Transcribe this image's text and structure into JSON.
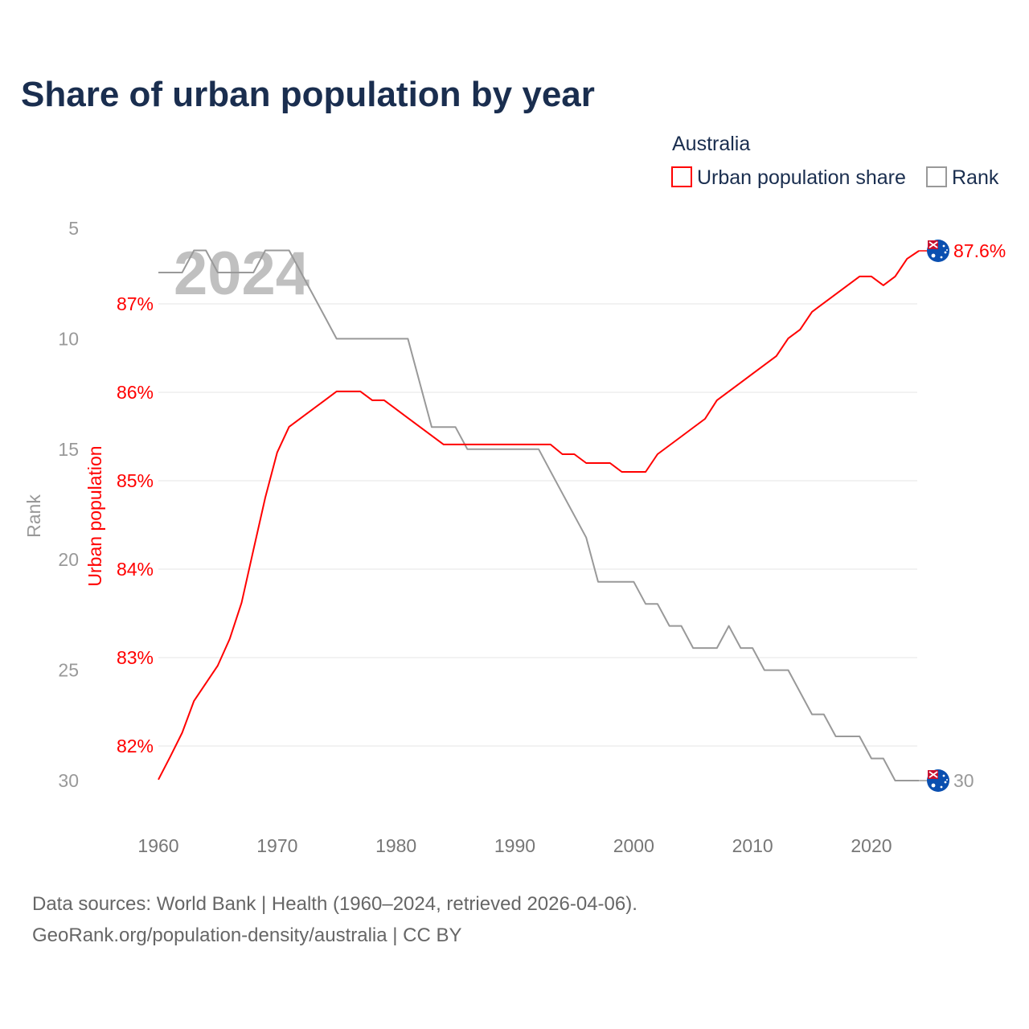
{
  "title": "Share of urban population by year",
  "legend": {
    "title": "Australia",
    "items": [
      {
        "label": "Urban population share",
        "color": "#ff0000"
      },
      {
        "label": "Rank",
        "color": "#999999"
      }
    ]
  },
  "watermark_year": "2024",
  "footer": {
    "line1": "Data sources: World Bank | Health (1960–2024, retrieved 2026-04-06).",
    "line2": "GeoRank.org/population-density/australia | CC BY"
  },
  "chart_data": {
    "type": "line",
    "title": "Share of urban population by year",
    "xlabel": "",
    "ylabel_left_outer": "Rank",
    "ylabel_left_inner": "Urban population",
    "x_ticks": [
      "1960",
      "1970",
      "1980",
      "1990",
      "2000",
      "2010",
      "2020"
    ],
    "rank_ticks": [
      "5",
      "10",
      "15",
      "20",
      "25",
      "30"
    ],
    "pct_ticks": [
      "82%",
      "83%",
      "84%",
      "85%",
      "86%",
      "87%"
    ],
    "rank_range": [
      5,
      30
    ],
    "pct_range": [
      81.6,
      87.85
    ],
    "grid": true,
    "legend_position": "top-right",
    "x": [
      1960,
      1961,
      1962,
      1963,
      1964,
      1965,
      1966,
      1967,
      1968,
      1969,
      1970,
      1971,
      1972,
      1973,
      1974,
      1975,
      1976,
      1977,
      1978,
      1979,
      1980,
      1981,
      1982,
      1983,
      1984,
      1985,
      1986,
      1987,
      1988,
      1989,
      1990,
      1991,
      1992,
      1993,
      1994,
      1995,
      1996,
      1997,
      1998,
      1999,
      2000,
      2001,
      2002,
      2003,
      2004,
      2005,
      2006,
      2007,
      2008,
      2009,
      2010,
      2011,
      2012,
      2013,
      2014,
      2015,
      2016,
      2017,
      2018,
      2019,
      2020,
      2021,
      2022,
      2023,
      2024
    ],
    "series": [
      {
        "name": "Urban population share",
        "color": "#ff0000",
        "axis": "pct",
        "values": [
          81.62,
          81.88,
          82.15,
          82.51,
          82.71,
          82.91,
          83.21,
          83.62,
          84.22,
          84.81,
          85.32,
          85.61,
          85.71,
          85.81,
          85.91,
          86.01,
          86.01,
          86.01,
          85.91,
          85.91,
          85.81,
          85.71,
          85.61,
          85.51,
          85.41,
          85.41,
          85.41,
          85.41,
          85.41,
          85.41,
          85.41,
          85.41,
          85.41,
          85.41,
          85.3,
          85.3,
          85.2,
          85.2,
          85.2,
          85.1,
          85.1,
          85.1,
          85.3,
          85.4,
          85.5,
          85.6,
          85.7,
          85.91,
          86.01,
          86.11,
          86.21,
          86.31,
          86.41,
          86.61,
          86.71,
          86.91,
          87.01,
          87.11,
          87.21,
          87.31,
          87.31,
          87.21,
          87.31,
          87.51,
          87.6
        ],
        "end_label": "87.6%"
      },
      {
        "name": "Rank",
        "color": "#999999",
        "axis": "rank",
        "values": [
          7,
          7,
          7,
          6,
          6,
          7,
          7,
          7,
          7,
          6,
          6,
          6,
          7,
          8,
          9,
          10,
          10,
          10,
          10,
          10,
          10,
          10,
          12,
          14,
          14,
          14,
          15,
          15,
          15,
          15,
          15,
          15,
          15,
          16,
          17,
          18,
          19,
          21,
          21,
          21,
          21,
          22,
          22,
          23,
          23,
          24,
          24,
          24,
          23,
          24,
          24,
          25,
          25,
          25,
          26,
          27,
          27,
          28,
          28,
          28,
          29,
          29,
          30,
          30,
          30
        ],
        "end_label": "30"
      }
    ]
  }
}
